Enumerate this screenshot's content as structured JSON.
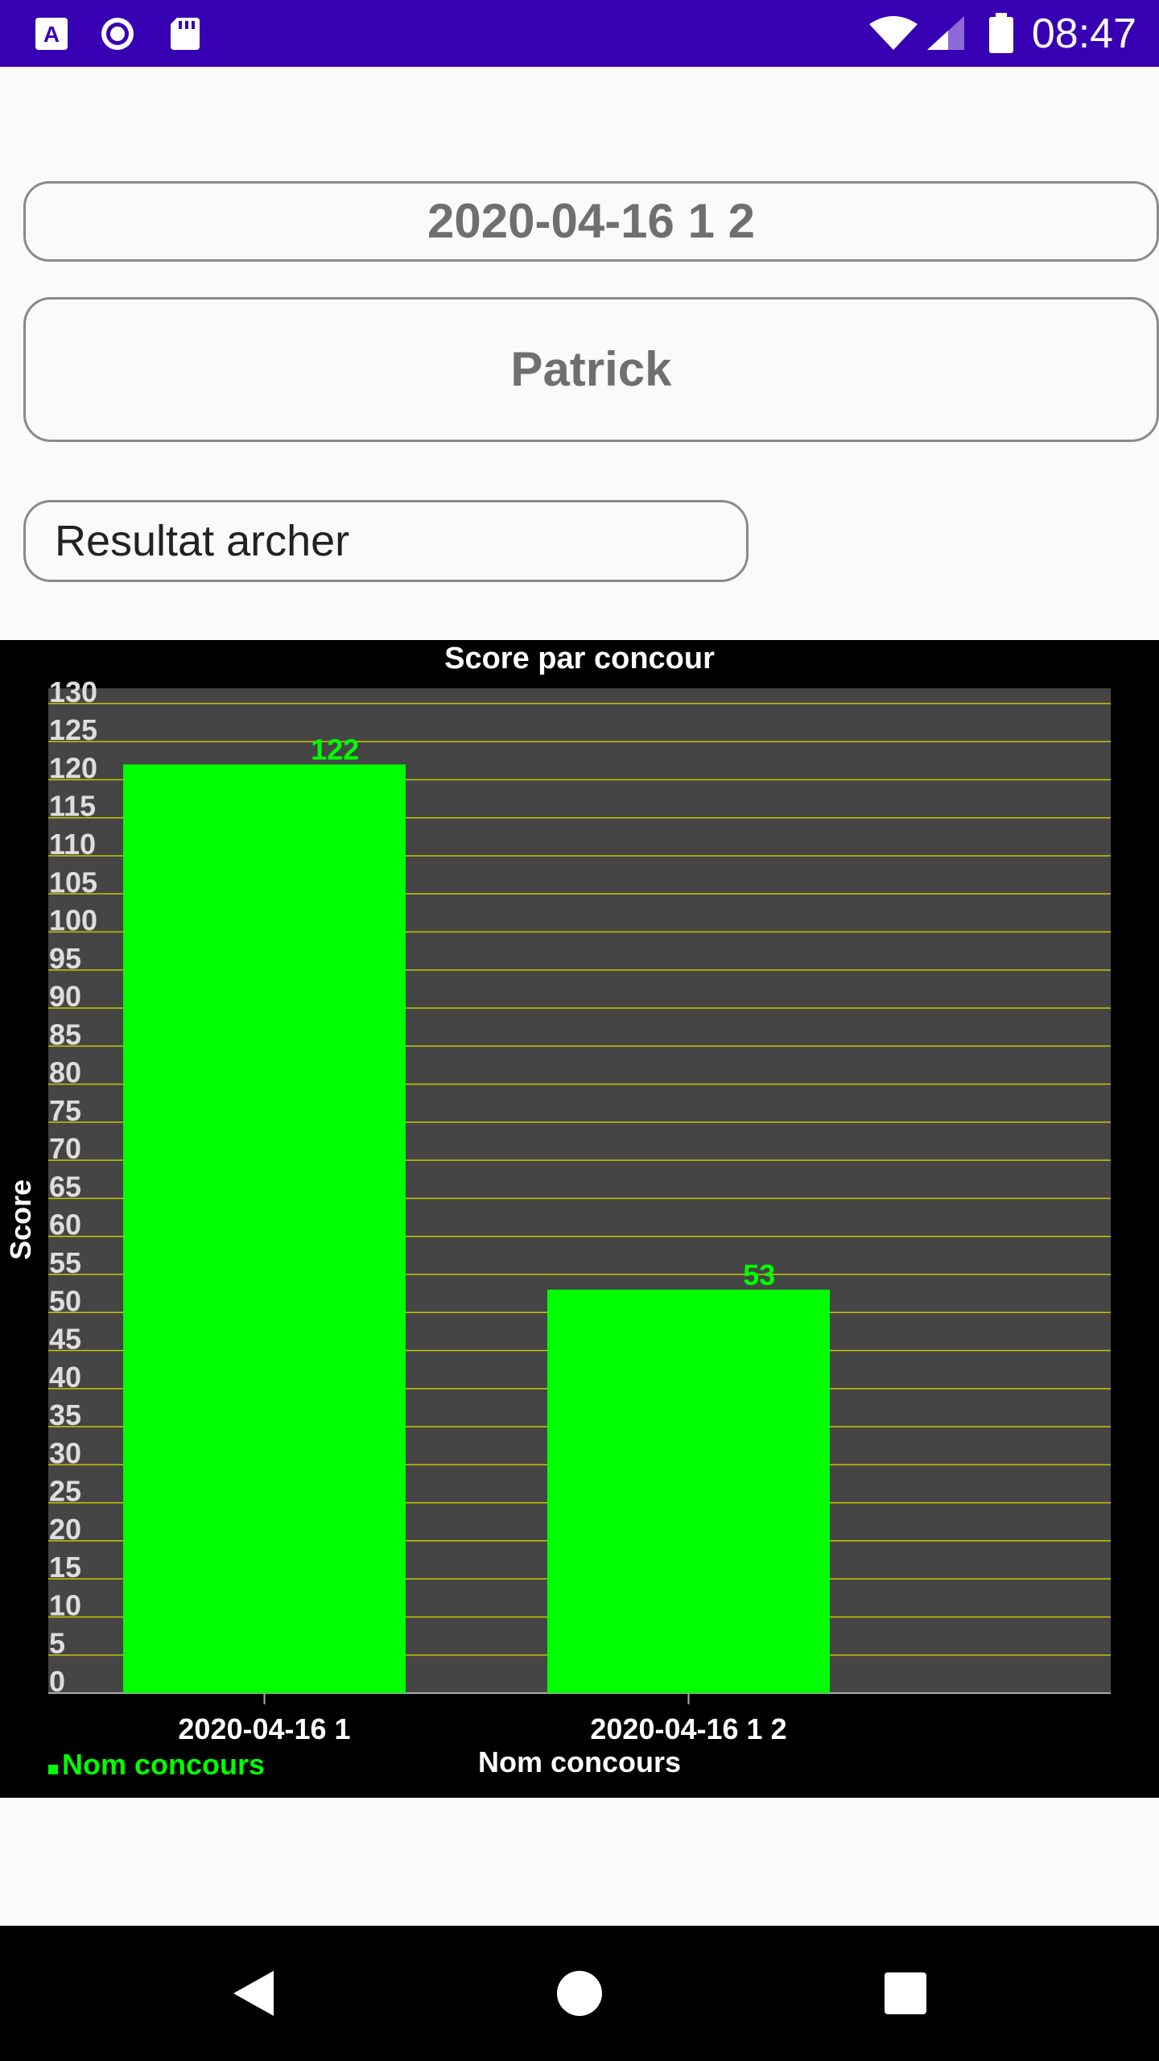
{
  "status_bar": {
    "time": "08:47",
    "icons": [
      "a-notification-icon",
      "record-icon",
      "sd-card-icon",
      "wifi-icon",
      "cell-signal-icon",
      "battery-icon"
    ]
  },
  "form": {
    "date_field": "2020-04-16 1 2",
    "archer_field": "Patrick",
    "result_button": "Resultat archer"
  },
  "chart_data": {
    "type": "bar",
    "title": "Score par concour",
    "xlabel": "Nom concours",
    "ylabel": "Score",
    "categories": [
      "2020-04-16 1",
      "2020-04-16 1 2"
    ],
    "series": [
      {
        "name": "Nom concours",
        "values": [
          122,
          53
        ]
      }
    ],
    "value_labels": [
      "122",
      "53"
    ],
    "yticks": [
      "0",
      "5",
      "10",
      "15",
      "20",
      "25",
      "30",
      "35",
      "40",
      "45",
      "50",
      "55",
      "60",
      "65",
      "70",
      "75",
      "80",
      "85",
      "90",
      "95",
      "100",
      "105",
      "110",
      "115",
      "120",
      "125",
      "130"
    ],
    "ylim": [
      0,
      132
    ],
    "grid": true,
    "legend": "bottom-left",
    "colors": {
      "bar": "#00ff00",
      "plot_bg": "#454545",
      "grid": "#c8c800",
      "text": "#ffffff",
      "axis_text": "#dddddd"
    }
  },
  "nav_bar": {
    "icons": [
      "back-icon",
      "home-icon",
      "recents-icon"
    ]
  }
}
